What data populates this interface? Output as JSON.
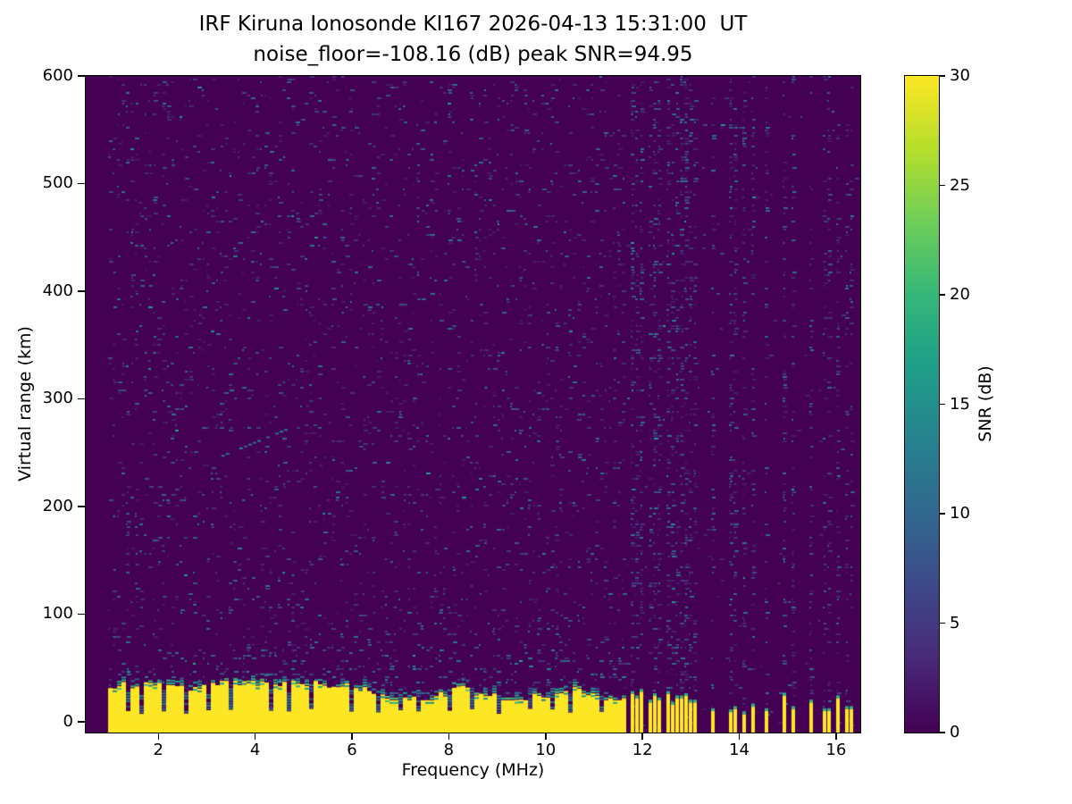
{
  "figure": {
    "title_line1": "IRF Kiruna Ionosonde KI167 2026-04-13 15:31:00  UT",
    "title_line2": "noise_floor=-108.16 (dB) peak SNR=94.95"
  },
  "chart_data": {
    "type": "heatmap",
    "title": "IRF Kiruna Ionosonde KI167 2026-04-13 15:31:00  UT",
    "subtitle": "noise_floor=-108.16 (dB) peak SNR=94.95",
    "station": "IRF Kiruna Ionosonde KI167",
    "datetime_ut": "2026-04-13 15:31:00",
    "noise_floor_db": -108.16,
    "peak_snr_db": 94.95,
    "xlabel": "Frequency (MHz)",
    "ylabel": "Virtual range (km)",
    "xlim": [
      0.5,
      16.5
    ],
    "ylim": [
      -10,
      600
    ],
    "xticks": [
      2,
      4,
      6,
      8,
      10,
      12,
      14,
      16
    ],
    "yticks": [
      0,
      100,
      200,
      300,
      400,
      500,
      600
    ],
    "grid": false,
    "colorbar": {
      "label": "SNR (dB)",
      "min": 0,
      "max": 30,
      "ticks": [
        0,
        5,
        10,
        15,
        20,
        25,
        30
      ],
      "colormap": "viridis"
    },
    "colormap_stops": [
      "#440154",
      "#482878",
      "#3e4989",
      "#31688e",
      "#26828e",
      "#1f9e89",
      "#35b779",
      "#6ece58",
      "#b5de2b",
      "#fde725"
    ],
    "seed": 7,
    "features": {
      "description": "Ionogram: weak blue noise speckle over dark-purple background; saturated yellow ground-return band from about -10 km to 20-38 km spanning 1.0-11.65 MHz with green fringe and dark notches; above 11.65 MHz only discrete interference stripe columns with short yellow bottom marks; faint slanted echo trace near 3.3-4.6 MHz at 250-270 km.",
      "freq_start_mhz": 0.95,
      "freq_end_mhz": 16.42,
      "continuous_band_end_mhz": 11.65,
      "noise_density": 0.09,
      "ground_return": {
        "top_km_min": 20,
        "top_km_max": 38,
        "value_db": 30
      },
      "band_notches": [
        1.35,
        1.62,
        2.08,
        2.55,
        3.05,
        3.52,
        4.35,
        4.72,
        5.2,
        5.98,
        6.55,
        7.02,
        7.35,
        8.02,
        8.5,
        9.05,
        9.65,
        10.15,
        10.52,
        11.15
      ],
      "stripes": [
        [
          11.78,
          0.3,
          26
        ],
        [
          11.9,
          0.25,
          22
        ],
        [
          12.02,
          0.3,
          28
        ],
        [
          12.14,
          0.22,
          18
        ],
        [
          12.26,
          0.28,
          24
        ],
        [
          12.38,
          0.25,
          20
        ],
        [
          12.52,
          0.3,
          26
        ],
        [
          12.64,
          0.22,
          16
        ],
        [
          12.78,
          0.25,
          22
        ],
        [
          12.92,
          0.28,
          24
        ],
        [
          13.05,
          0.22,
          18
        ],
        [
          13.5,
          0.18,
          10
        ],
        [
          13.8,
          0.3,
          9
        ],
        [
          13.95,
          0.25,
          12
        ],
        [
          14.08,
          0.2,
          7
        ],
        [
          14.32,
          0.22,
          14
        ],
        [
          14.55,
          0.2,
          10
        ],
        [
          14.92,
          0.25,
          24
        ],
        [
          15.1,
          0.2,
          12
        ],
        [
          15.52,
          0.22,
          18
        ],
        [
          15.82,
          0.18,
          10
        ],
        [
          16.05,
          0.22,
          22
        ],
        [
          16.28,
          0.18,
          12
        ]
      ],
      "echo_trace": {
        "f0": 3.3,
        "r0": 248,
        "f1": 4.6,
        "r1": 272
      }
    }
  }
}
